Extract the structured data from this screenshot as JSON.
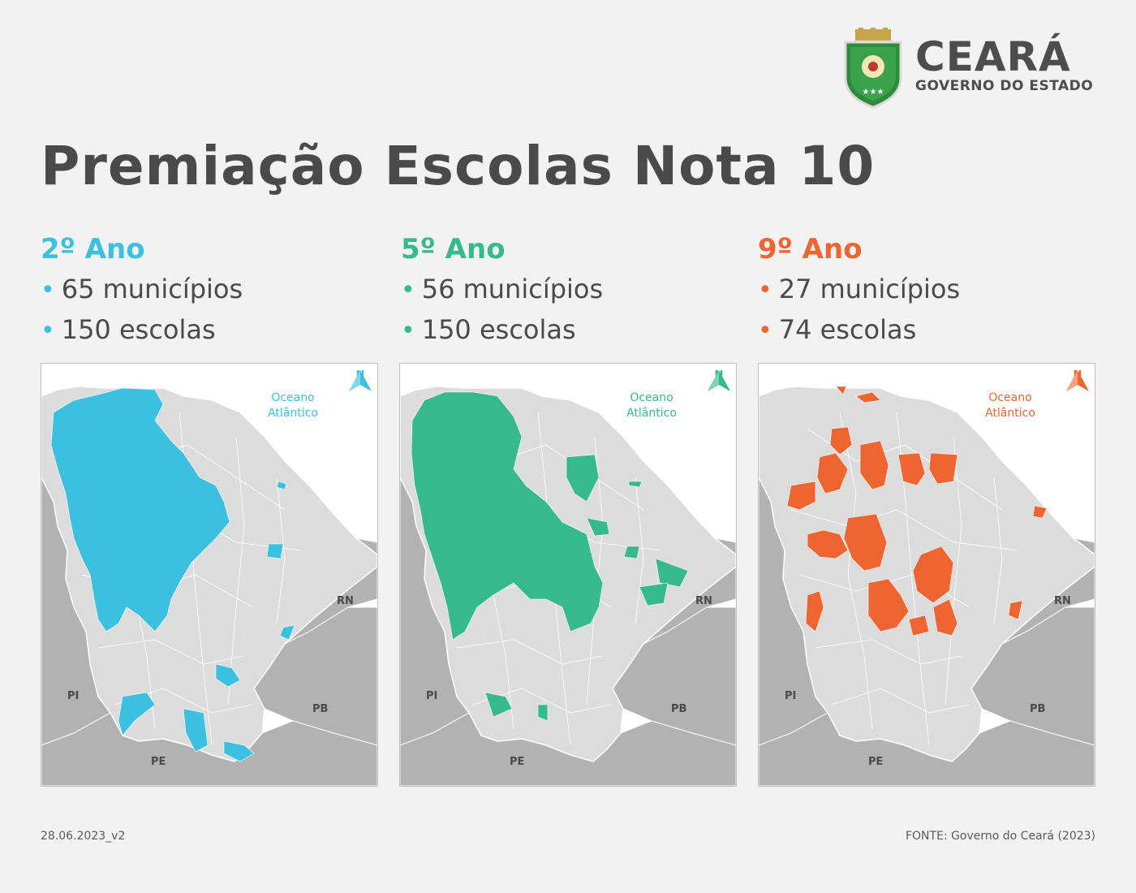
{
  "header": {
    "brand": "CEARÁ",
    "subtitle": "GOVERNO DO ESTADO"
  },
  "title": "Premiação Escolas Nota 10",
  "colors": {
    "ano2": "#3cc0e0",
    "ano5": "#35b98d",
    "ano9": "#ee6531",
    "state": "#dcdcdc",
    "neighbor": "#b2b2b2",
    "border": "#ffffff"
  },
  "panels": [
    {
      "heading": "2º Ano",
      "municipios": "65 municípios",
      "escolas": "150 escolas",
      "color": "#3cc0e0"
    },
    {
      "heading": "5º Ano",
      "municipios": "56 municípios",
      "escolas": "150 escolas",
      "color": "#35b98d"
    },
    {
      "heading": "9º Ano",
      "municipios": "27 municípios",
      "escolas": "74 escolas",
      "color": "#ee6531"
    }
  ],
  "map": {
    "ocean_line1": "Oceano",
    "ocean_line2": "Atlântico",
    "north": "N",
    "states": {
      "rn": "RN",
      "pi": "PI",
      "pb": "PB",
      "pe": "PE"
    }
  },
  "footer": {
    "date": "28.06.2023_v2",
    "source": "FONTE: Governo do Ceará (2023)"
  }
}
